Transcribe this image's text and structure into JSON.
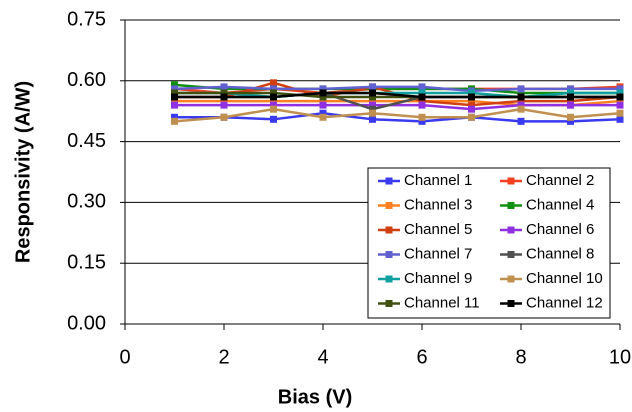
{
  "chart_data": {
    "type": "line",
    "x_label": "Bias (V)",
    "y_label": "Responsivity (A/W)",
    "x": [
      1,
      2,
      3,
      4,
      5,
      6,
      7,
      8,
      9,
      10
    ],
    "xlim": [
      0,
      10
    ],
    "xticks": [
      0,
      2,
      4,
      6,
      8,
      10
    ],
    "ylim": [
      0,
      0.75
    ],
    "yticks": [
      {
        "value": 0,
        "label": "0.00"
      },
      0.15,
      {
        "value": 0.3,
        "label": "0.30"
      },
      0.45,
      {
        "value": 0.6,
        "label": "0.60"
      },
      0.75
    ],
    "grid": true,
    "legend": "lower right",
    "series": [
      {
        "name": "Channel 1",
        "color": "#3a3af0",
        "values": [
          0.51,
          0.51,
          0.505,
          0.52,
          0.505,
          0.5,
          0.51,
          0.5,
          0.5,
          0.505
        ]
      },
      {
        "name": "Channel 2",
        "color": "#f04020",
        "values": [
          0.58,
          0.57,
          0.58,
          0.57,
          0.58,
          0.58,
          0.58,
          0.58,
          0.58,
          0.585
        ]
      },
      {
        "name": "Channel 3",
        "color": "#ff8020",
        "values": [
          0.55,
          0.55,
          0.55,
          0.55,
          0.55,
          0.55,
          0.55,
          0.54,
          0.54,
          0.55
        ]
      },
      {
        "name": "Channel 4",
        "color": "#109010",
        "values": [
          0.59,
          0.58,
          0.58,
          0.58,
          0.58,
          0.58,
          0.58,
          0.57,
          0.57,
          0.57
        ]
      },
      {
        "name": "Channel 5",
        "color": "#d04010",
        "values": [
          0.56,
          0.56,
          0.595,
          0.56,
          0.585,
          0.55,
          0.54,
          0.55,
          0.55,
          0.56
        ]
      },
      {
        "name": "Channel 6",
        "color": "#9030e0",
        "values": [
          0.54,
          0.54,
          0.54,
          0.54,
          0.54,
          0.54,
          0.53,
          0.54,
          0.54,
          0.54
        ]
      },
      {
        "name": "Channel 7",
        "color": "#6060d0",
        "values": [
          0.58,
          0.585,
          0.58,
          0.58,
          0.585,
          0.585,
          0.575,
          0.58,
          0.58,
          0.58
        ]
      },
      {
        "name": "Channel 8",
        "color": "#505050",
        "values": [
          0.56,
          0.56,
          0.56,
          0.57,
          0.53,
          0.56,
          0.56,
          0.56,
          0.56,
          0.56
        ]
      },
      {
        "name": "Channel 9",
        "color": "#10a0a0",
        "values": [
          0.57,
          0.57,
          0.56,
          0.57,
          0.57,
          0.57,
          0.57,
          0.56,
          0.57,
          0.57
        ]
      },
      {
        "name": "Channel 10",
        "color": "#c09050",
        "values": [
          0.5,
          0.51,
          0.53,
          0.51,
          0.52,
          0.51,
          0.51,
          0.53,
          0.51,
          0.52
        ]
      },
      {
        "name": "Channel 11",
        "color": "#405010",
        "values": [
          0.57,
          0.57,
          0.57,
          0.56,
          0.56,
          0.56,
          0.56,
          0.56,
          0.56,
          0.56
        ]
      },
      {
        "name": "Channel 12",
        "color": "#000000",
        "values": [
          0.56,
          0.56,
          0.56,
          0.57,
          0.57,
          0.56,
          0.56,
          0.56,
          0.56,
          0.56
        ]
      }
    ]
  }
}
